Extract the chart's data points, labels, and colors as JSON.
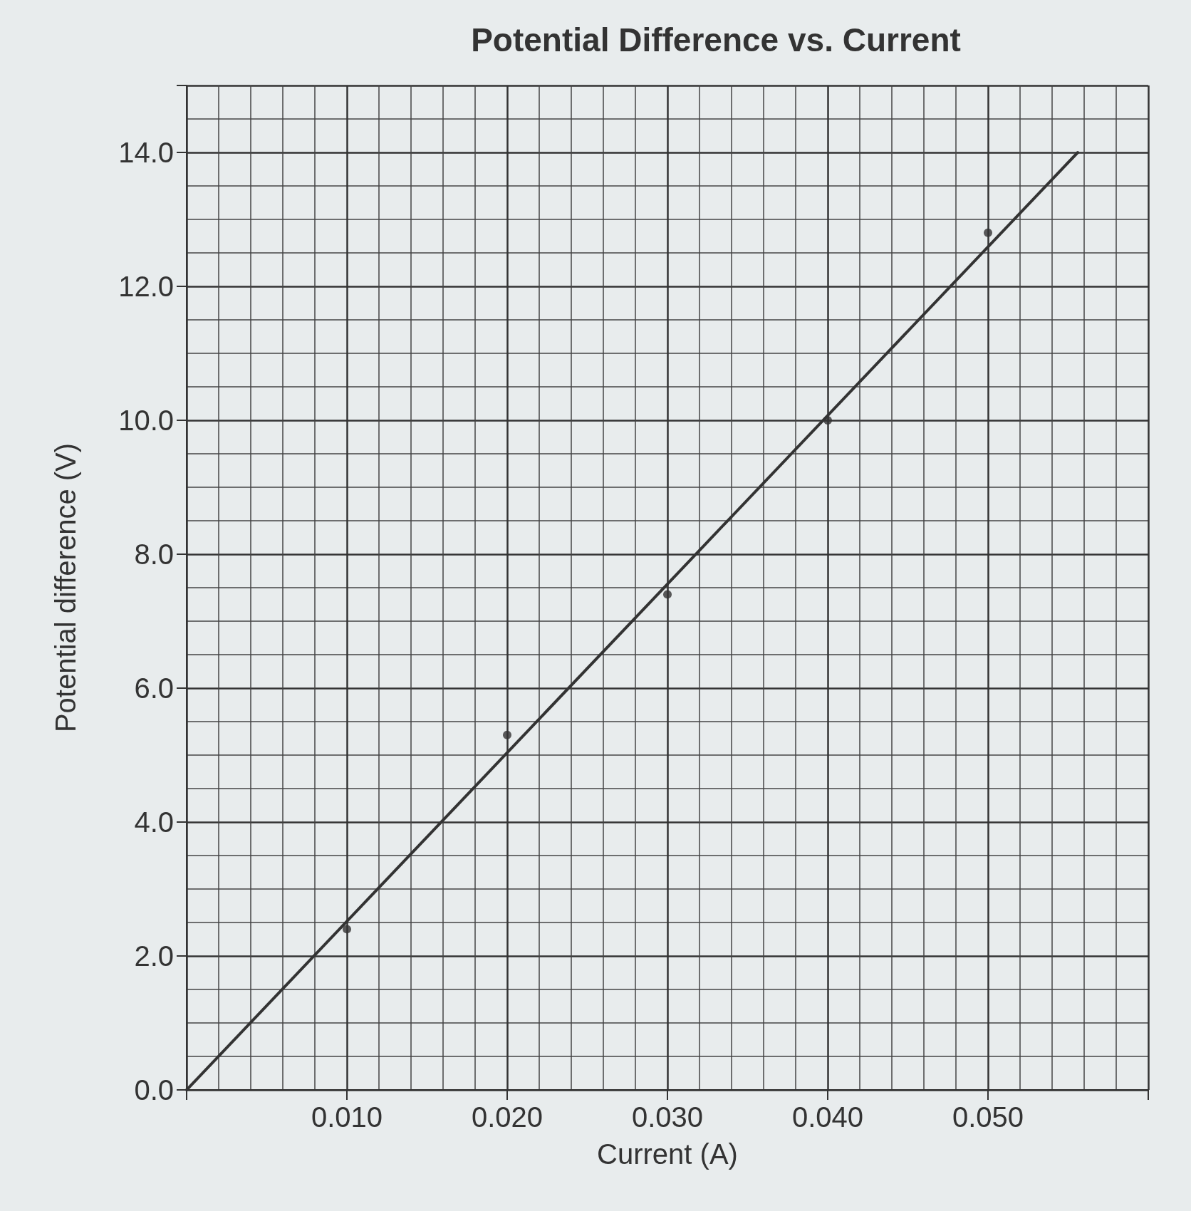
{
  "chart_data": {
    "type": "scatter",
    "title": "Potential Difference vs. Current",
    "xlabel": "Current (A)",
    "ylabel": "Potential difference (V)",
    "x": [
      0.01,
      0.02,
      0.03,
      0.04,
      0.05
    ],
    "series": [
      {
        "color": "#333333",
        "values": [
          2.4,
          5.3,
          7.4,
          10.0,
          12.8
        ],
        "marker": "circle"
      },
      {
        "type": "line",
        "color": "#333333",
        "x": [
          0,
          0.0556
        ],
        "values": [
          0,
          14.0
        ],
        "marker": "none",
        "line_style": "solid"
      }
    ],
    "xlim": [
      0,
      0.06
    ],
    "xticks": [
      {
        "value": 0,
        "label": null
      },
      {
        "value": 0.01,
        "label": "0.010"
      },
      {
        "value": 0.02,
        "label": "0.020"
      },
      {
        "value": 0.03,
        "label": "0.030"
      },
      {
        "value": 0.04,
        "label": "0.040"
      },
      {
        "value": 0.05,
        "label": "0.050"
      },
      {
        "value": 0.06,
        "label": null
      }
    ],
    "ylim": [
      0,
      15
    ],
    "yticks": [
      {
        "value": 0,
        "label": "0.0"
      },
      {
        "value": 2,
        "label": "2.0"
      },
      {
        "value": 4,
        "label": "4.0"
      },
      {
        "value": 6,
        "label": "6.0"
      },
      {
        "value": 8,
        "label": "8.0"
      },
      {
        "value": 10,
        "label": "10.0"
      },
      {
        "value": 12,
        "label": "12.0"
      },
      {
        "value": 14,
        "label": "14.0"
      }
    ],
    "grid": true
  }
}
